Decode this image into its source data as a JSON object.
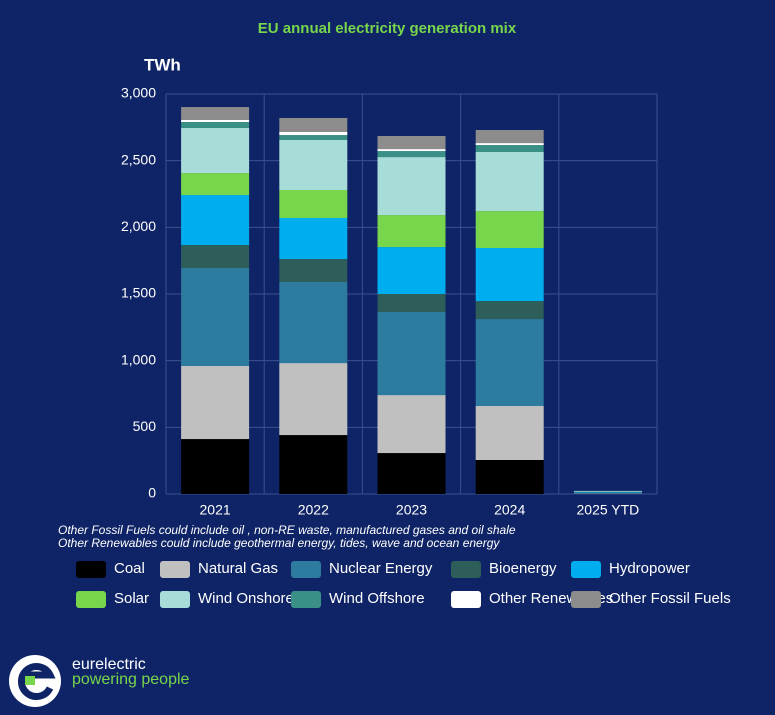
{
  "chart_data": {
    "type": "stacked_bar",
    "title": "EU annual electricity generation mix",
    "y_label": "TWh",
    "categories": [
      "2021",
      "2022",
      "2023",
      "2024",
      "2025 YTD"
    ],
    "series": [
      {
        "name": "Coal",
        "color": "#000000",
        "values": [
          412,
          442,
          307,
          255,
          2
        ]
      },
      {
        "name": "Natural Gas",
        "color": "#c0c0c0",
        "values": [
          548,
          540,
          435,
          405,
          3
        ]
      },
      {
        "name": "Nuclear Energy",
        "color": "#2e7ba0",
        "values": [
          735,
          608,
          623,
          652,
          6
        ]
      },
      {
        "name": "Bioenergy",
        "color": "#2e5e5a",
        "values": [
          172,
          172,
          135,
          135,
          1
        ]
      },
      {
        "name": "Hydropower",
        "color": "#00aeef",
        "values": [
          375,
          308,
          352,
          398,
          3
        ]
      },
      {
        "name": "Solar",
        "color": "#77d64b",
        "values": [
          165,
          210,
          240,
          277,
          1
        ]
      },
      {
        "name": "Wind Onshore",
        "color": "#a8dcd9",
        "values": [
          338,
          375,
          435,
          443,
          6
        ]
      },
      {
        "name": "Wind Offshore",
        "color": "#3a8f87",
        "values": [
          45,
          37,
          45,
          52,
          1
        ]
      },
      {
        "name": "Other Renewables",
        "color": "#ffffff",
        "values": [
          15,
          23,
          15,
          15,
          0.2
        ]
      },
      {
        "name": "Other Fossil Fuels",
        "color": "#8c8c8c",
        "values": [
          97,
          105,
          98,
          98,
          0.5
        ]
      }
    ],
    "ylim": [
      0,
      3000
    ],
    "yticks": [
      0,
      500,
      {
        "value": 1000,
        "label": "1,000"
      },
      {
        "value": 1500,
        "label": "1,500"
      },
      {
        "value": 2000,
        "label": "2,000"
      },
      {
        "value": 2500,
        "label": "2,500"
      },
      {
        "value": 3000,
        "label": "3,000"
      }
    ],
    "grid": true,
    "notes": [
      "Other Fossil Fuels could include oil , non-RE waste, manufactured gases and oil shale",
      "Other Renewables could include geothermal energy, tides, wave and ocean energy"
    ]
  },
  "logo": {
    "name": "eurelectric",
    "tagline": "powering people"
  }
}
